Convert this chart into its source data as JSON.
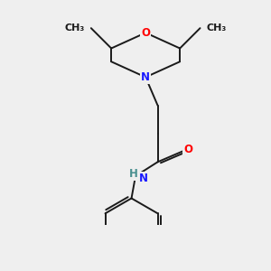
{
  "background_color": "#efefef",
  "bond_color": "#1a1a1a",
  "bond_width": 1.4,
  "atom_colors": {
    "N": "#1a1aff",
    "O": "#ff0000",
    "H": "#4a9090",
    "C": "#1a1a1a"
  },
  "font_size": 8.5,
  "fig_size": [
    3.0,
    3.0
  ],
  "dpi": 100
}
